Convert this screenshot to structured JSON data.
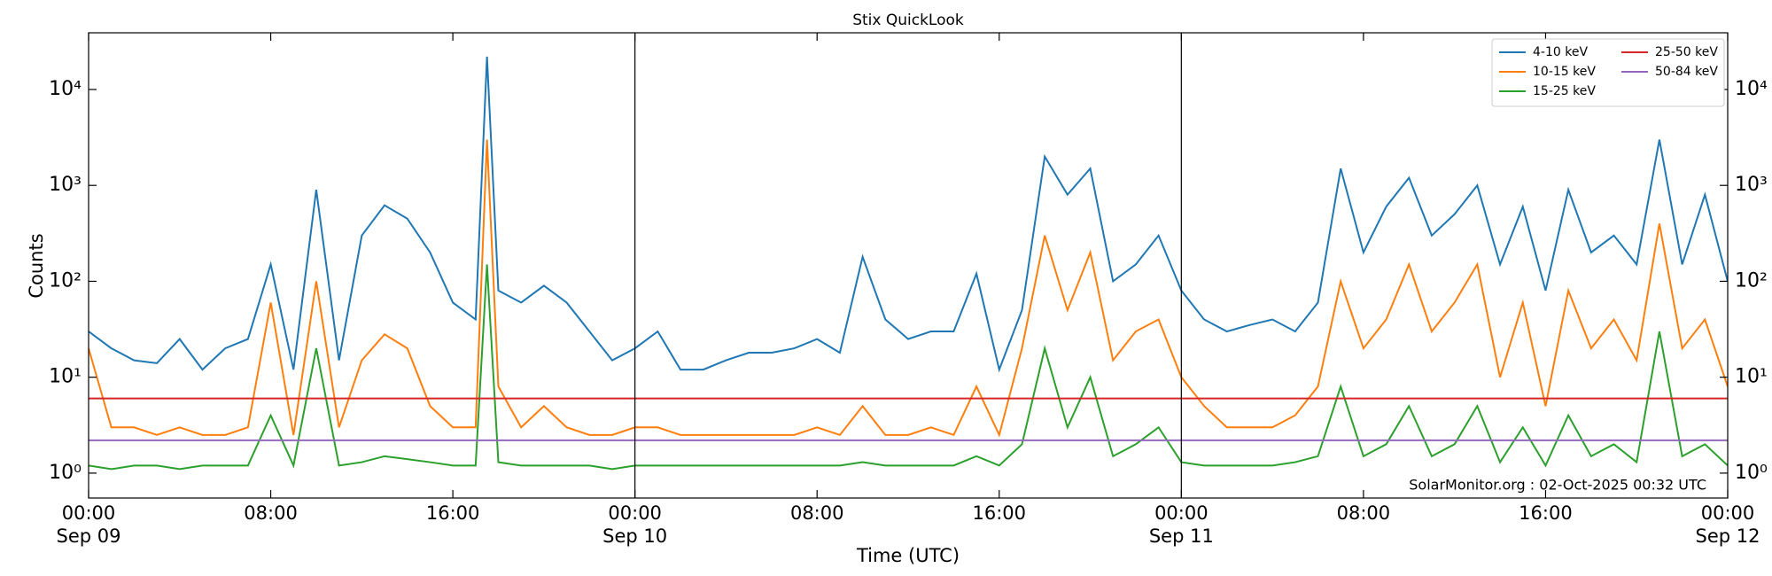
{
  "chart_data": {
    "type": "line",
    "title": "Stix QuickLook",
    "x_label": "Time (UTC)",
    "y_label": "Counts",
    "annotation": "SolarMonitor.org : 02-Oct-2025 00:32 UTC",
    "log_y": true,
    "legend": "upper right",
    "x": [
      0,
      1,
      2,
      3,
      4,
      5,
      6,
      7,
      8,
      9,
      10,
      11,
      12,
      13,
      14,
      15,
      16,
      17,
      17.5,
      18,
      19,
      20,
      21,
      22,
      23,
      24,
      25,
      26,
      27,
      28,
      29,
      30,
      31,
      32,
      33,
      34,
      35,
      36,
      37,
      38,
      39,
      40,
      41,
      42,
      43,
      44,
      45,
      46,
      47,
      48,
      49,
      50,
      51,
      52,
      53,
      54,
      55,
      56,
      57,
      58,
      59,
      60,
      61,
      62,
      63,
      64,
      65,
      66,
      67,
      68,
      69,
      70,
      71,
      72
    ],
    "xlim": [
      0,
      72
    ],
    "xticks": [
      {
        "value": 0,
        "label": "00:00\nSep 09"
      },
      {
        "value": 8,
        "label": "08:00"
      },
      {
        "value": 16,
        "label": "16:00"
      },
      {
        "value": 24,
        "label": "00:00\nSep 10"
      },
      {
        "value": 32,
        "label": "08:00"
      },
      {
        "value": 40,
        "label": "16:00"
      },
      {
        "value": 48,
        "label": "00:00\nSep 11"
      },
      {
        "value": 56,
        "label": "08:00"
      },
      {
        "value": 64,
        "label": "16:00"
      },
      {
        "value": 72,
        "label": "00:00\nSep 12"
      }
    ],
    "ylim": [
      0.55,
      39000
    ],
    "yticks": [
      {
        "value": 1,
        "label": "10⁰"
      },
      {
        "value": 10,
        "label": "10¹"
      },
      {
        "value": 100,
        "label": "10²"
      },
      {
        "value": 1000,
        "label": "10³"
      },
      {
        "value": 10000,
        "label": "10⁴"
      }
    ],
    "series": [
      {
        "name": "4-10 keV",
        "color": "#1f77b4",
        "values": [
          30,
          20,
          15,
          14,
          25,
          12,
          20,
          25,
          150,
          12,
          900,
          15,
          300,
          620,
          450,
          200,
          60,
          40,
          22000,
          80,
          60,
          90,
          60,
          30,
          15,
          20,
          30,
          12,
          12,
          15,
          18,
          18,
          20,
          25,
          18,
          180,
          40,
          25,
          30,
          30,
          120,
          12,
          50,
          2000,
          800,
          1500,
          100,
          150,
          300,
          80,
          40,
          30,
          35,
          40,
          30,
          60,
          1500,
          200,
          600,
          1200,
          300,
          500,
          1000,
          150,
          600,
          80,
          900,
          200,
          300,
          150,
          3000,
          150,
          800,
          100
        ]
      },
      {
        "name": "10-15 keV",
        "color": "#ff7f0e",
        "values": [
          20,
          3,
          3,
          2.5,
          3,
          2.5,
          2.5,
          3,
          60,
          2.5,
          100,
          3,
          15,
          28,
          20,
          5,
          3,
          3,
          3000,
          8,
          3,
          5,
          3,
          2.5,
          2.5,
          3,
          3,
          2.5,
          2.5,
          2.5,
          2.5,
          2.5,
          2.5,
          3,
          2.5,
          5,
          2.5,
          2.5,
          3,
          2.5,
          8,
          2.5,
          20,
          300,
          50,
          200,
          15,
          30,
          40,
          10,
          5,
          3,
          3,
          3,
          4,
          8,
          100,
          20,
          40,
          150,
          30,
          60,
          150,
          10,
          60,
          5,
          80,
          20,
          40,
          15,
          400,
          20,
          40,
          8
        ]
      },
      {
        "name": "15-25 keV",
        "color": "#2ca02c",
        "values": [
          1.2,
          1.1,
          1.2,
          1.2,
          1.1,
          1.2,
          1.2,
          1.2,
          4,
          1.2,
          20,
          1.2,
          1.3,
          1.5,
          1.4,
          1.3,
          1.2,
          1.2,
          150,
          1.3,
          1.2,
          1.2,
          1.2,
          1.2,
          1.1,
          1.2,
          1.2,
          1.2,
          1.2,
          1.2,
          1.2,
          1.2,
          1.2,
          1.2,
          1.2,
          1.3,
          1.2,
          1.2,
          1.2,
          1.2,
          1.5,
          1.2,
          2,
          20,
          3,
          10,
          1.5,
          2,
          3,
          1.3,
          1.2,
          1.2,
          1.2,
          1.2,
          1.3,
          1.5,
          8,
          1.5,
          2,
          5,
          1.5,
          2,
          5,
          1.3,
          3,
          1.2,
          4,
          1.5,
          2,
          1.3,
          30,
          1.5,
          2,
          1.2
        ]
      },
      {
        "name": "25-50 keV",
        "color": "#d62728",
        "values": [
          6,
          6,
          6,
          6,
          6,
          6,
          6,
          6,
          6,
          6,
          6,
          6,
          6,
          6,
          6,
          6,
          6,
          6,
          6,
          6,
          6,
          6,
          6,
          6,
          6,
          6,
          6,
          6,
          6,
          6,
          6,
          6,
          6,
          6,
          6,
          6,
          6,
          6,
          6,
          6,
          6,
          6,
          6,
          6,
          6,
          6,
          6,
          6,
          6,
          6,
          6,
          6,
          6,
          6,
          6,
          6,
          6,
          6,
          6,
          6,
          6,
          6,
          6,
          6,
          6,
          6,
          6,
          6,
          6,
          6,
          6,
          6,
          6,
          6
        ]
      },
      {
        "name": "50-84 keV",
        "color": "#9467bd",
        "values": [
          2.2,
          2.2,
          2.2,
          2.2,
          2.2,
          2.2,
          2.2,
          2.2,
          2.2,
          2.2,
          2.2,
          2.2,
          2.2,
          2.2,
          2.2,
          2.2,
          2.2,
          2.2,
          2.2,
          2.2,
          2.2,
          2.2,
          2.2,
          2.2,
          2.2,
          2.2,
          2.2,
          2.2,
          2.2,
          2.2,
          2.2,
          2.2,
          2.2,
          2.2,
          2.2,
          2.2,
          2.2,
          2.2,
          2.2,
          2.2,
          2.2,
          2.2,
          2.2,
          2.2,
          2.2,
          2.2,
          2.2,
          2.2,
          2.2,
          2.2,
          2.2,
          2.2,
          2.2,
          2.2,
          2.2,
          2.2,
          2.2,
          2.2,
          2.2,
          2.2,
          2.2,
          2.2,
          2.2,
          2.2,
          2.2,
          2.2,
          2.2,
          2.2,
          2.2,
          2.2,
          2.2,
          2.2,
          2.2,
          2.2
        ]
      }
    ]
  }
}
